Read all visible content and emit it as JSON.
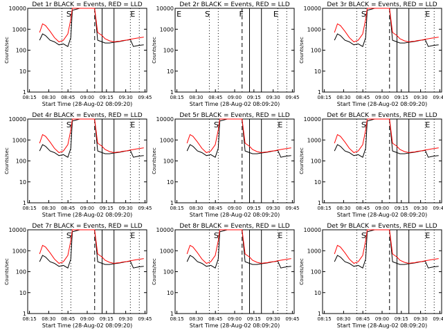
{
  "chart_data": {
    "type": "line",
    "yscale": "log",
    "ylim": [
      1,
      10000
    ],
    "xlim": [
      8.0,
      8.8
    ],
    "y_ticks": [
      "1",
      "10",
      "100",
      "1000",
      "10000"
    ],
    "x_ticks": [
      "08:15",
      "08:30",
      "08:45",
      "09:00",
      "09:15",
      "09:30",
      "09:45"
    ],
    "ylabel": "Counts/sec",
    "xlabel": "Start Time (28-Aug-02 08:09:20)",
    "colors": {
      "events": "#000000",
      "lld": "#ff0000",
      "axes": "#000000"
    },
    "panels": [
      {
        "title": "Det 1r BLACK = Events, RED = LLD",
        "labels": [
          "S",
          "E"
        ],
        "has_data": true
      },
      {
        "title": "Det 2r BLACK = Events, RED = LLD",
        "labels": [
          "E",
          "S",
          "F",
          "E"
        ],
        "has_data": false
      },
      {
        "title": "Det 3r BLACK = Events, RED = LLD",
        "labels": [
          "S",
          "E"
        ],
        "has_data": true
      },
      {
        "title": "Det 4r BLACK = Events, RED = LLD",
        "labels": [
          "S",
          "E"
        ],
        "has_data": true
      },
      {
        "title": "Det 5r BLACK = Events, RED = LLD",
        "labels": [
          "S",
          "E"
        ],
        "has_data": true
      },
      {
        "title": "Det 6r BLACK = Events, RED = LLD",
        "labels": [
          "S",
          "E"
        ],
        "has_data": true
      },
      {
        "title": "Det 7r BLACK = Events, RED = LLD",
        "labels": [
          "S",
          "E"
        ],
        "has_data": true
      },
      {
        "title": "Det 8r BLACK = Events, RED = LLD",
        "labels": [
          "S",
          "E"
        ],
        "has_data": true
      },
      {
        "title": "Det 9r BLACK = Events, RED = LLD",
        "labels": [
          "S",
          "E"
        ],
        "has_data": true
      }
    ],
    "series": [
      {
        "key": "events",
        "x": [
          8.08,
          8.1,
          8.12,
          8.15,
          8.18,
          8.21,
          8.24,
          8.27,
          8.29,
          8.3,
          8.35,
          8.42,
          8.45,
          8.47,
          8.5,
          8.52,
          8.55,
          8.58,
          8.6,
          8.62,
          8.64,
          8.66,
          8.68,
          8.69,
          8.71,
          8.73,
          8.75,
          8.78
        ],
        "y": [
          300,
          600,
          500,
          300,
          250,
          180,
          200,
          150,
          400,
          8000,
          10000,
          10000,
          10000,
          300,
          250,
          220,
          220,
          240,
          250,
          260,
          280,
          300,
          310,
          320,
          150,
          160,
          170,
          180
        ]
      },
      {
        "key": "lld",
        "x": [
          8.08,
          8.1,
          8.12,
          8.15,
          8.18,
          8.21,
          8.24,
          8.27,
          8.29,
          8.3,
          8.35,
          8.42,
          8.45,
          8.47,
          8.5,
          8.52,
          8.55,
          8.58,
          8.6,
          8.62,
          8.64,
          8.66,
          8.68,
          8.69,
          8.71,
          8.73,
          8.75,
          8.78
        ],
        "y": [
          700,
          1800,
          1500,
          800,
          400,
          250,
          300,
          600,
          3000,
          10000,
          10000,
          10000,
          10000,
          700,
          500,
          350,
          280,
          250,
          260,
          270,
          290,
          300,
          320,
          330,
          350,
          370,
          390,
          420
        ]
      }
    ]
  }
}
